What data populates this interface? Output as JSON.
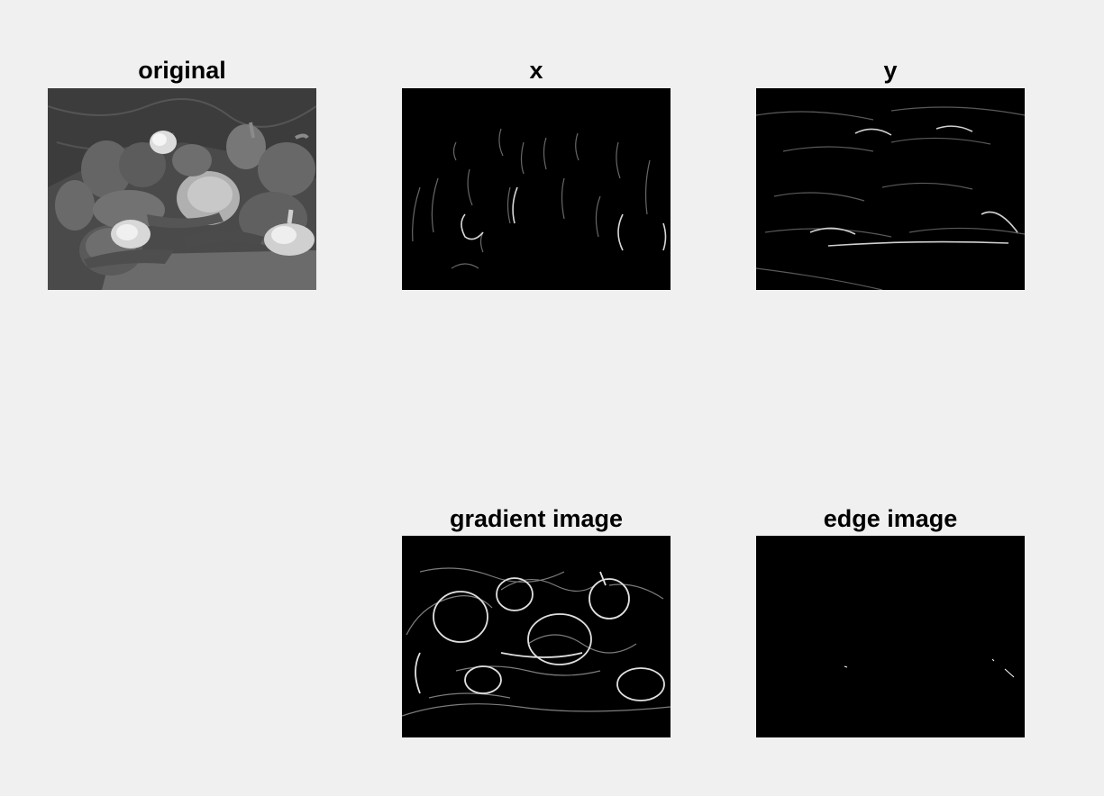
{
  "figure": {
    "background": "#f0f0f0",
    "panels": [
      {
        "id": "original",
        "title": "original",
        "image": "grayscale-peppers-photo",
        "tone": "#5e5e5e"
      },
      {
        "id": "x",
        "title": "x",
        "image": "x-gradient-map",
        "tone": "#000000"
      },
      {
        "id": "y",
        "title": "y",
        "image": "y-gradient-map",
        "tone": "#000000"
      },
      {
        "id": "gradient",
        "title": "gradient image",
        "image": "gradient-magnitude-map",
        "tone": "#000000"
      },
      {
        "id": "edge",
        "title": "edge image",
        "image": "thresholded-edge-map",
        "tone": "#000000"
      }
    ]
  }
}
